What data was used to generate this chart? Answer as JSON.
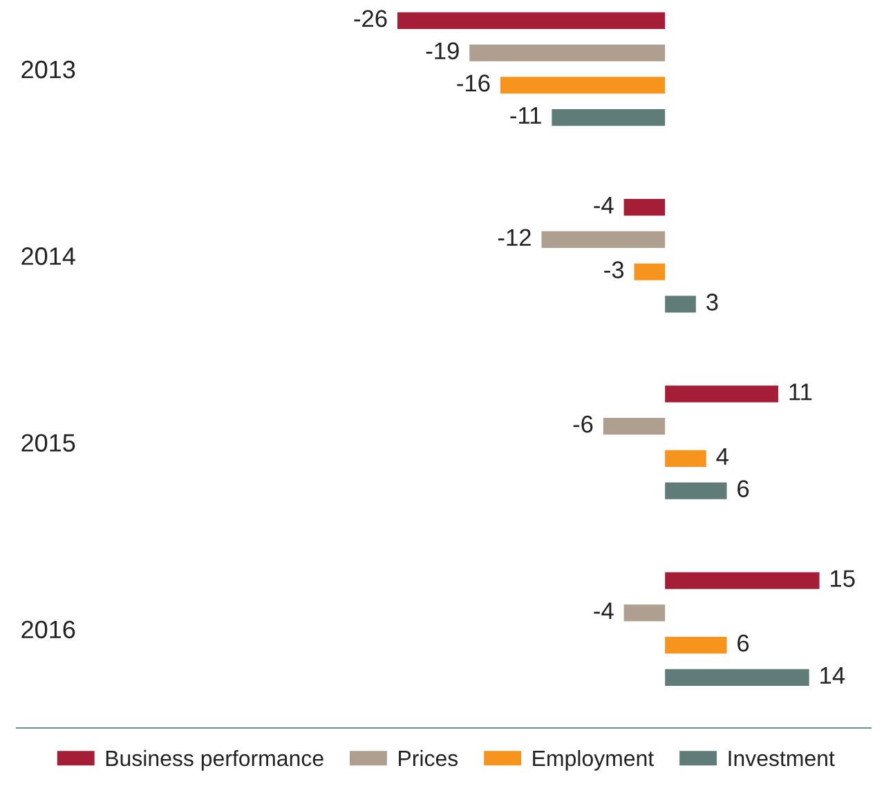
{
  "chart_data": {
    "type": "bar",
    "orientation": "horizontal",
    "categories": [
      "2013",
      "2014",
      "2015",
      "2016"
    ],
    "series": [
      {
        "name": "Business performance",
        "color": "#a51d36",
        "values": [
          -26,
          -4,
          11,
          15
        ]
      },
      {
        "name": "Prices",
        "color": "#ae9f91",
        "values": [
          -19,
          -12,
          -6,
          -4
        ]
      },
      {
        "name": "Employment",
        "color": "#f7941d",
        "values": [
          -16,
          -3,
          4,
          6
        ]
      },
      {
        "name": "Investment",
        "color": "#5f7c78",
        "values": [
          -11,
          3,
          6,
          14
        ]
      }
    ],
    "xlim": [
      -63,
      20
    ],
    "tick_labels": "y",
    "data_labels": true,
    "legend": "bottom",
    "grid": false
  }
}
